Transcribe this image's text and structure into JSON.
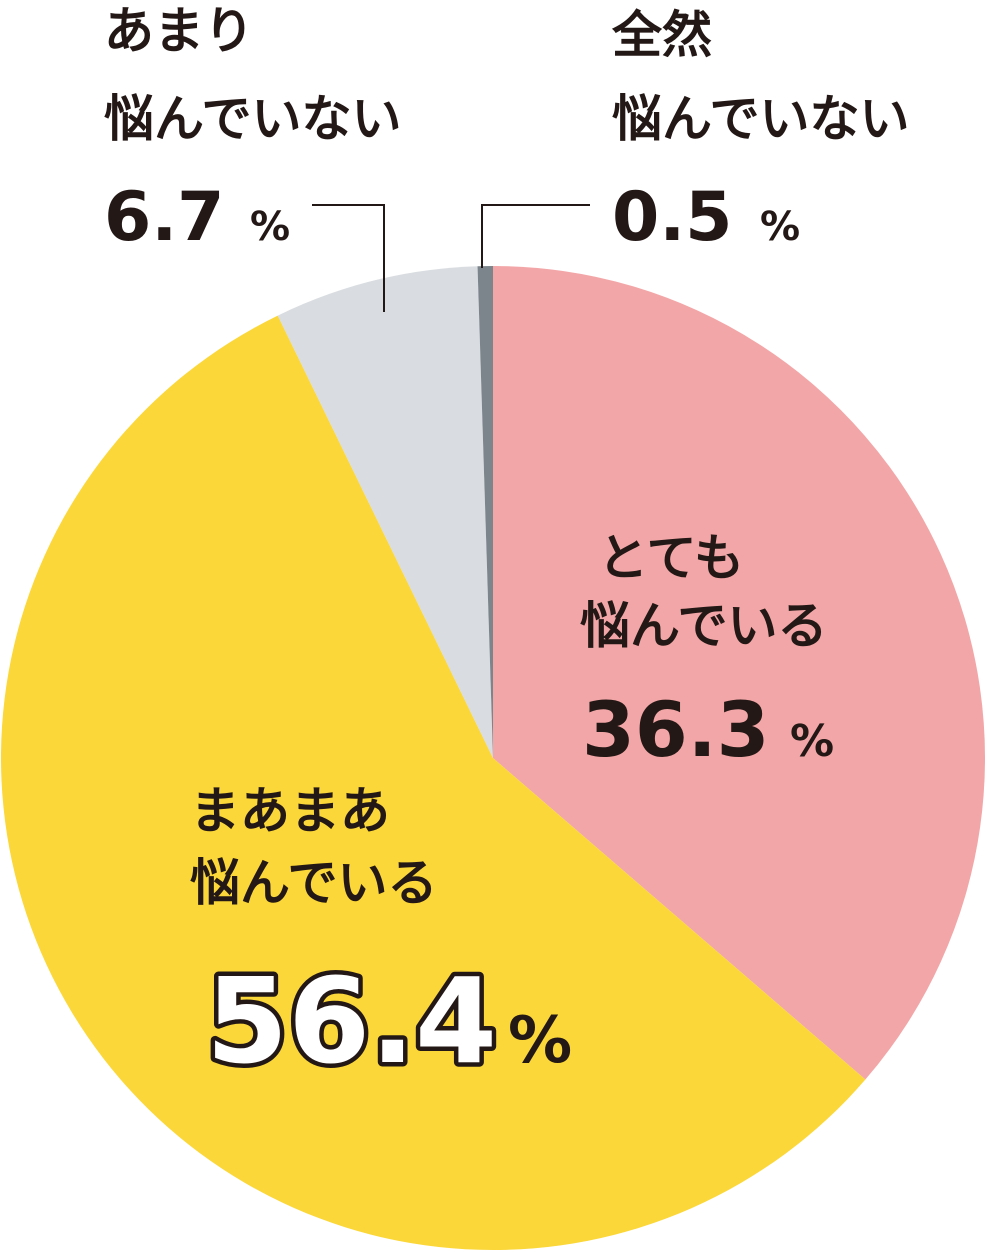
{
  "chart_data": {
    "type": "pie",
    "start_angle_deg": 0,
    "direction": "clockwise",
    "slices": [
      {
        "key": "very",
        "line1": "とても",
        "line2": "悩んでいる",
        "value": 36.3,
        "value_text": "36.3",
        "unit": "%",
        "color": "#f3a6a7"
      },
      {
        "key": "somewhat",
        "line1": "まあまあ",
        "line2": "悩んでいる",
        "value": 56.4,
        "value_text": "56.4",
        "unit": "%",
        "color": "#fbd739"
      },
      {
        "key": "not-much",
        "line1": "あまり",
        "line2": "悩んでいない",
        "value": 6.7,
        "value_text": "6.7",
        "unit": "%",
        "color": "#d9dce0"
      },
      {
        "key": "not-at-all",
        "line1": "全然",
        "line2": "悩んでいない",
        "value": 0.5,
        "value_text": "0.5",
        "unit": "%",
        "color": "#7b858b"
      }
    ],
    "leader_color": "#231815"
  }
}
